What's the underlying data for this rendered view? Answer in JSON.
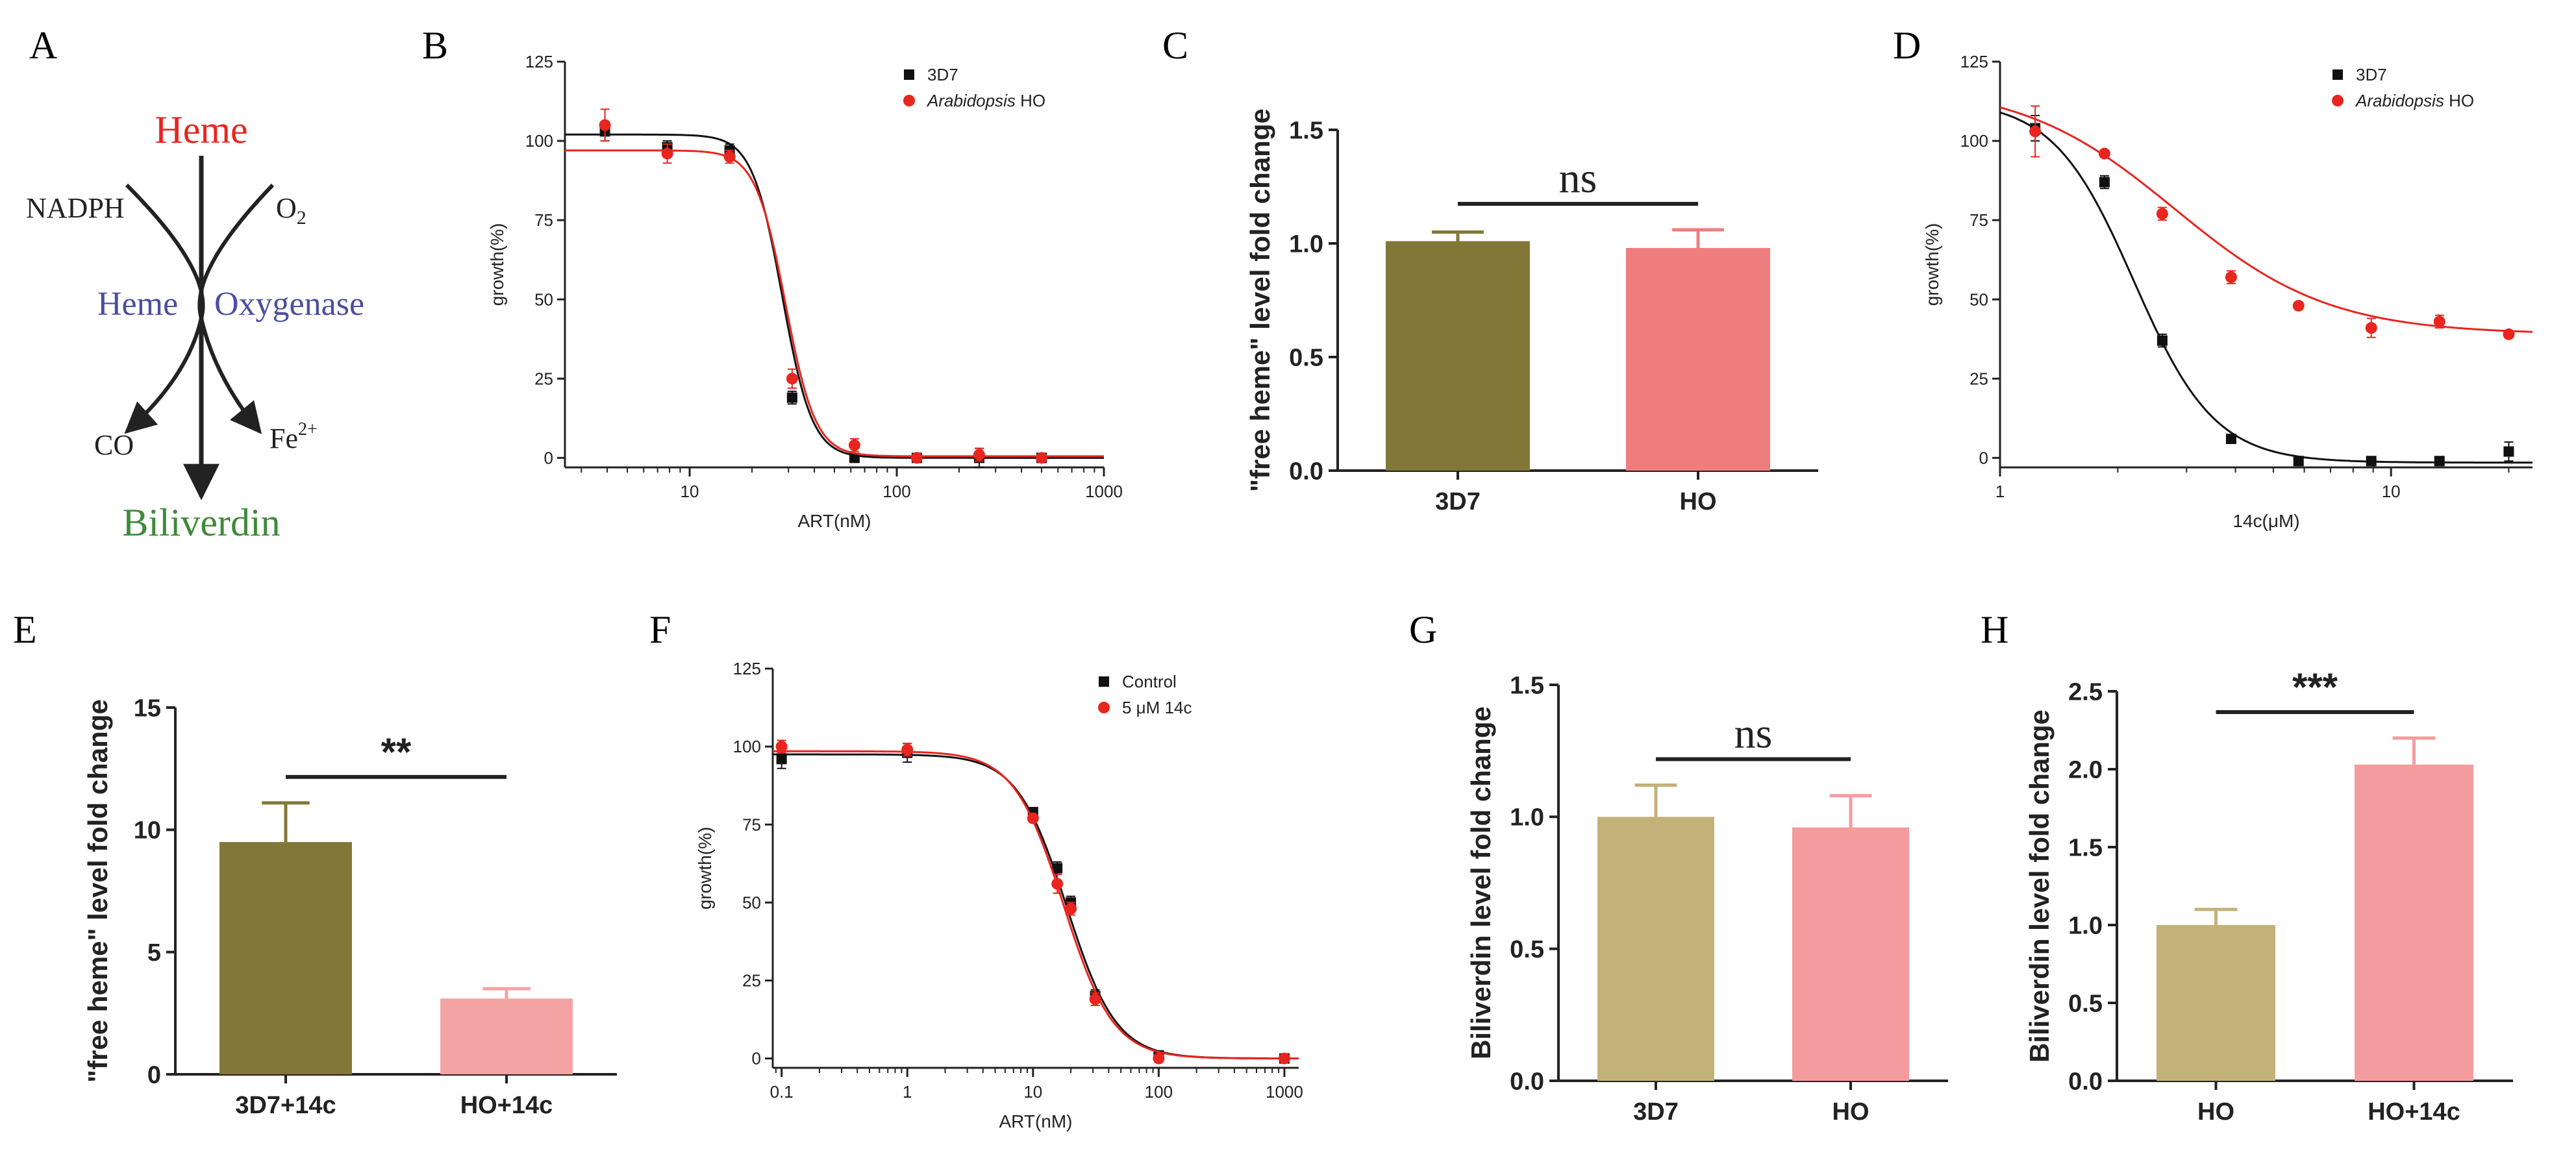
{
  "figure": {
    "panel_letters": [
      "A",
      "B",
      "C",
      "D",
      "E",
      "F",
      "G",
      "H"
    ]
  },
  "pathway": {
    "substrate": "Heme",
    "cofactor_left": "NADPH",
    "cofactor_right_base": "O",
    "cofactor_right_sub": "2",
    "enzyme_word1": "Heme",
    "enzyme_word2": "Oxygenase",
    "product_left": "CO",
    "product_right_base": "Fe",
    "product_right_sup": "2+",
    "product": "Biliverdin",
    "colors": {
      "substrate": "#e8251f",
      "enzyme": "#4a4ea0",
      "product": "#3e8a3a",
      "text": "#222222"
    }
  },
  "chart_data": [
    {
      "panel": "B",
      "type": "scatter",
      "fit": "dose-response",
      "xscale": "log",
      "xlabel": "ART(nM)",
      "ylabel": "growth(%)",
      "xlim": [
        2.5,
        1000
      ],
      "ylim": [
        -3,
        125
      ],
      "xticks": [
        10,
        100,
        1000
      ],
      "xtick_labels": [
        "10",
        "100",
        "1000"
      ],
      "yticks": [
        0,
        25,
        50,
        75,
        100,
        125
      ],
      "ytick_labels": [
        "0",
        "25",
        "50",
        "75",
        "100",
        "125"
      ],
      "legend_position": "top-right",
      "series": [
        {
          "name": "3D7",
          "italic_part": "",
          "color": "#111111",
          "marker": "square",
          "x": [
            3.9,
            7.8,
            15.6,
            31.25,
            62.5,
            125,
            250,
            500
          ],
          "y": [
            103,
            98,
            97,
            19,
            0,
            0,
            0,
            0
          ],
          "err": [
            3,
            2,
            2,
            2,
            1,
            1,
            3,
            1
          ],
          "fit": {
            "top": 102,
            "bottom": 0,
            "ec50": 28,
            "hill": 6
          }
        },
        {
          "name": "Arabidopsis HO",
          "italic_part": "Arabidopsis",
          "color": "#e8251f",
          "marker": "circle",
          "x": [
            3.9,
            7.8,
            15.6,
            31.25,
            62.5,
            125,
            250,
            500
          ],
          "y": [
            105,
            96,
            95,
            25,
            4,
            0,
            1,
            0
          ],
          "err": [
            5,
            3,
            2,
            3,
            2,
            1,
            2,
            1
          ],
          "fit": {
            "top": 97,
            "bottom": 0.5,
            "ec50": 29,
            "hill": 6
          }
        }
      ]
    },
    {
      "panel": "C",
      "type": "bar",
      "ylabel": "\"free heme\" level fold change",
      "categories": [
        "3D7",
        "HO"
      ],
      "values": [
        1.01,
        0.98
      ],
      "errors": [
        0.04,
        0.08
      ],
      "colors": [
        "#837737",
        "#ef7d7e"
      ],
      "ylim": [
        0,
        1.5
      ],
      "yticks": [
        0,
        0.5,
        1.0,
        1.5
      ],
      "ytick_labels": [
        "0.0",
        "0.5",
        "1.0",
        "1.5"
      ],
      "significance": "ns"
    },
    {
      "panel": "D",
      "type": "scatter",
      "fit": "dose-response",
      "xscale": "log",
      "xlabel": "14c(μM)",
      "ylabel": "growth(%)",
      "xlim": [
        1,
        23
      ],
      "ylim": [
        -3,
        125
      ],
      "xticks": [
        1,
        10
      ],
      "xtick_labels": [
        "1",
        "10"
      ],
      "yticks": [
        0,
        25,
        50,
        75,
        100,
        125
      ],
      "ytick_labels": [
        "0",
        "25",
        "50",
        "75",
        "100",
        "125"
      ],
      "legend_position": "top-right",
      "series": [
        {
          "name": "3D7",
          "italic_part": "",
          "color": "#111111",
          "marker": "square",
          "x": [
            1.23,
            1.85,
            2.6,
            3.9,
            5.8,
            8.9,
            13.3,
            20
          ],
          "y": [
            104,
            87,
            37,
            6,
            -1,
            -1,
            -1,
            2
          ],
          "err": [
            4,
            2,
            2,
            1,
            1,
            1,
            1,
            3
          ],
          "fit": {
            "top": 113,
            "bottom": -1.5,
            "ec50": 2.2,
            "hill": 4.2
          }
        },
        {
          "name": "Arabidopsis HO",
          "italic_part": "Arabidopsis",
          "color": "#e8251f",
          "marker": "circle",
          "x": [
            1.23,
            1.85,
            2.6,
            3.9,
            5.8,
            8.9,
            13.3,
            20
          ],
          "y": [
            103,
            96,
            77,
            57,
            48,
            41,
            43,
            39
          ],
          "err": [
            8,
            1,
            2,
            2,
            1,
            3,
            2,
            1
          ],
          "fit": {
            "top": 118,
            "bottom": 39,
            "ec50": 2.8,
            "hill": 2.2
          }
        }
      ]
    },
    {
      "panel": "E",
      "type": "bar",
      "ylabel": "\"free heme\" level fold change",
      "categories": [
        "3D7+14c",
        "HO+14c"
      ],
      "values": [
        9.5,
        3.1
      ],
      "errors": [
        1.6,
        0.4
      ],
      "colors": [
        "#837737",
        "#f4a3a3"
      ],
      "ylim": [
        0,
        15
      ],
      "yticks": [
        0,
        5,
        10,
        15
      ],
      "ytick_labels": [
        "0",
        "5",
        "10",
        "15"
      ],
      "significance": "**"
    },
    {
      "panel": "F",
      "type": "scatter",
      "fit": "dose-response",
      "xscale": "log",
      "xlabel": "ART(nM)",
      "ylabel": "growth(%)",
      "xlim": [
        0.085,
        1300
      ],
      "ylim": [
        -3,
        125
      ],
      "xticks": [
        0.1,
        1,
        10,
        100,
        1000
      ],
      "xtick_labels": [
        "0.1",
        "1",
        "10",
        "100",
        "1000"
      ],
      "yticks": [
        0,
        25,
        50,
        75,
        100,
        125
      ],
      "ytick_labels": [
        "0",
        "25",
        "50",
        "75",
        "100",
        "125"
      ],
      "legend_position": "top-right",
      "series": [
        {
          "name": "Control",
          "italic_part": "",
          "color": "#111111",
          "marker": "square",
          "x": [
            0.1,
            1,
            10,
            15.6,
            20,
            31.25,
            100,
            1000
          ],
          "y": [
            96,
            98,
            79,
            61,
            50,
            20,
            1,
            0
          ],
          "err": [
            3,
            3,
            1,
            2,
            2,
            2,
            1,
            1
          ],
          "fit": {
            "top": 97.5,
            "bottom": 0,
            "ec50": 18.5,
            "hill": 2.2
          }
        },
        {
          "name": "5 μM 14c",
          "italic_part": "",
          "color": "#e8251f",
          "marker": "circle",
          "x": [
            0.1,
            1,
            10,
            15.6,
            20,
            31.25,
            100,
            1000
          ],
          "y": [
            100,
            99,
            77,
            56,
            48,
            19,
            0,
            0
          ],
          "err": [
            2,
            2,
            1,
            3,
            2,
            2,
            1,
            1
          ],
          "fit": {
            "top": 98.5,
            "bottom": 0,
            "ec50": 17.5,
            "hill": 2.2
          }
        }
      ]
    },
    {
      "panel": "G",
      "type": "bar",
      "ylabel": "Biliverdin level fold change",
      "categories": [
        "3D7",
        "HO"
      ],
      "values": [
        1.0,
        0.96
      ],
      "errors": [
        0.12,
        0.12
      ],
      "colors": [
        "#c2b27a",
        "#f49c9d"
      ],
      "ylim": [
        0,
        1.5
      ],
      "yticks": [
        0,
        0.5,
        1.0,
        1.5
      ],
      "ytick_labels": [
        "0.0",
        "0.5",
        "1.0",
        "1.5"
      ],
      "significance": "ns"
    },
    {
      "panel": "H",
      "type": "bar",
      "ylabel": "Biliverdin level fold change",
      "categories": [
        "HO",
        "HO+14c"
      ],
      "values": [
        1.0,
        2.03
      ],
      "errors": [
        0.1,
        0.17
      ],
      "colors": [
        "#c2b27a",
        "#f49c9d"
      ],
      "ylim": [
        0,
        2.5
      ],
      "yticks": [
        0,
        0.5,
        1.0,
        1.5,
        2.0,
        2.5
      ],
      "ytick_labels": [
        "0.0",
        "0.5",
        "1.0",
        "1.5",
        "2.0",
        "2.5"
      ],
      "significance": "***"
    }
  ]
}
